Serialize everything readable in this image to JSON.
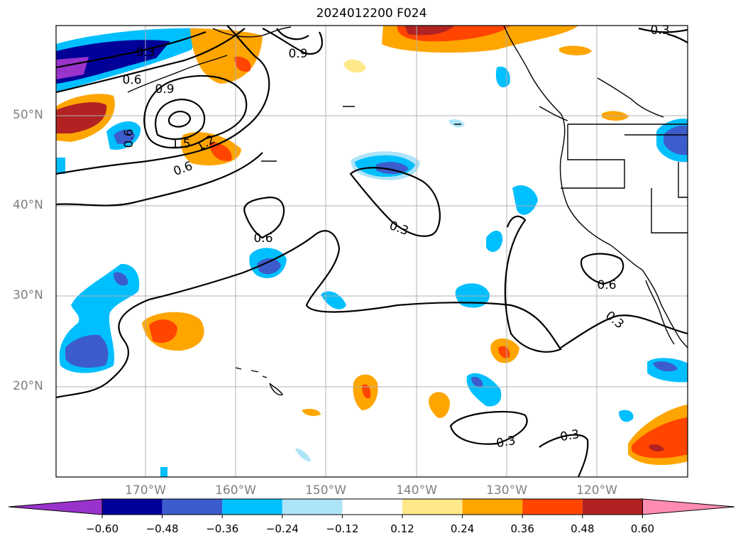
{
  "title": "2024012200 F024",
  "lat_labels": [
    "50°N",
    "40°N",
    "30°N",
    "20°N"
  ],
  "lon_labels": [
    "170°W",
    "160°W",
    "150°W",
    "140°W",
    "130°W",
    "120°W"
  ],
  "colorbar": {
    "tick_labels": [
      "−0.60",
      "−0.48",
      "−0.36",
      "−0.24",
      "−0.12",
      "0.12",
      "0.24",
      "0.36",
      "0.48",
      "0.60"
    ],
    "colors": [
      "#9933cc",
      "#000099",
      "#3c5ccc",
      "#00bfff",
      "#aee4f9",
      "#ffffff",
      "#ffe88a",
      "#ffa500",
      "#ff4500",
      "#b22222",
      "#ff8cb0"
    ]
  },
  "contour_labels": [
    "0.3",
    "0.6",
    "0.9",
    "0.6",
    "1.5",
    "1.2",
    "0.6",
    "0.3",
    "0.6",
    "0.6",
    "0.3",
    "0.3",
    "0.3",
    "0.9",
    "0.3"
  ]
}
